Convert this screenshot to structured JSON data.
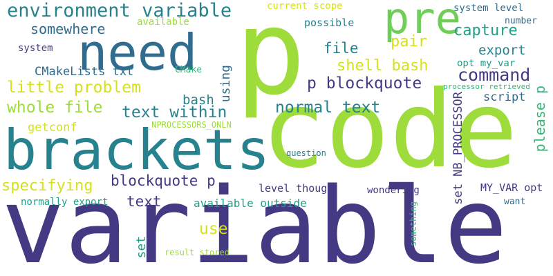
{
  "palette": {
    "background": "#ffffff",
    "navy": "#443a83",
    "blue": "#2f6c8e",
    "teal_dark": "#26828e",
    "teal": "#1f9e89",
    "green_teal": "#35b779",
    "green": "#6ece58",
    "lime": "#9ddc3a",
    "yellow": "#d5e21a"
  },
  "words": [
    {
      "text": "variable",
      "color": "#443a83"
    },
    {
      "text": "code",
      "color": "#9ddc3a"
    },
    {
      "text": "p",
      "color": "#9ddc3a"
    },
    {
      "text": "brackets",
      "color": "#26828e"
    },
    {
      "text": "need",
      "color": "#2f6c8e"
    },
    {
      "text": "pre",
      "color": "#6ece58"
    },
    {
      "text": "environment variable",
      "color": "#26828e"
    },
    {
      "text": "somewhere",
      "color": "#2f6c8e"
    },
    {
      "text": "available",
      "color": "#9ddc3a"
    },
    {
      "text": "current scope",
      "color": "#d5e21a"
    },
    {
      "text": "possible",
      "color": "#26828e"
    },
    {
      "text": "system level",
      "color": "#2f6c8e"
    },
    {
      "text": "number",
      "color": "#2f6c8e"
    },
    {
      "text": "capture",
      "color": "#1f9e89"
    },
    {
      "text": "export",
      "color": "#26828e"
    },
    {
      "text": "pair",
      "color": "#d5e21a"
    },
    {
      "text": "file",
      "color": "#26828e"
    },
    {
      "text": "system",
      "color": "#443a83"
    },
    {
      "text": "CMakeLists txt",
      "color": "#2f6c8e"
    },
    {
      "text": "CMake",
      "color": "#35b779"
    },
    {
      "text": "shell bash",
      "color": "#d5e21a"
    },
    {
      "text": "opt my_var",
      "color": "#1f9e89"
    },
    {
      "text": "command",
      "color": "#443a83"
    },
    {
      "text": "little problem",
      "color": "#d5e21a"
    },
    {
      "text": "using",
      "color": "#2f6c8e"
    },
    {
      "text": "p blockquote",
      "color": "#443a83"
    },
    {
      "text": "processor retrieved",
      "color": "#35b779"
    },
    {
      "text": "please p",
      "color": "#35b779"
    },
    {
      "text": "bash",
      "color": "#26828e"
    },
    {
      "text": "script",
      "color": "#2f6c8e"
    },
    {
      "text": "whole file",
      "color": "#9ddc3a"
    },
    {
      "text": "text within",
      "color": "#26828e"
    },
    {
      "text": "normal text",
      "color": "#26828e"
    },
    {
      "text": "getconf",
      "color": "#d5e21a"
    },
    {
      "text": "_NPROCESSORS_ONLN",
      "color": "#9ddc3a"
    },
    {
      "text": "set NB_PROCESSOR",
      "color": "#443a83"
    },
    {
      "text": "question",
      "color": "#26828e"
    },
    {
      "text": "specifying",
      "color": "#d5e21a"
    },
    {
      "text": "blockquote p",
      "color": "#443a83"
    },
    {
      "text": "text",
      "color": "#443a83"
    },
    {
      "text": "level though",
      "color": "#443a83"
    },
    {
      "text": "wondering",
      "color": "#443a83"
    },
    {
      "text": "MY_VAR opt",
      "color": "#443a83"
    },
    {
      "text": "want",
      "color": "#2f6c8e"
    },
    {
      "text": "normally export",
      "color": "#1f9e89"
    },
    {
      "text": "available outside",
      "color": "#1f9e89"
    },
    {
      "text": "use",
      "color": "#d5e21a"
    },
    {
      "text": "set",
      "color": "#1f9e89"
    },
    {
      "text": "something",
      "color": "#35b779"
    },
    {
      "text": "result stored",
      "color": "#9ddc3a"
    }
  ]
}
